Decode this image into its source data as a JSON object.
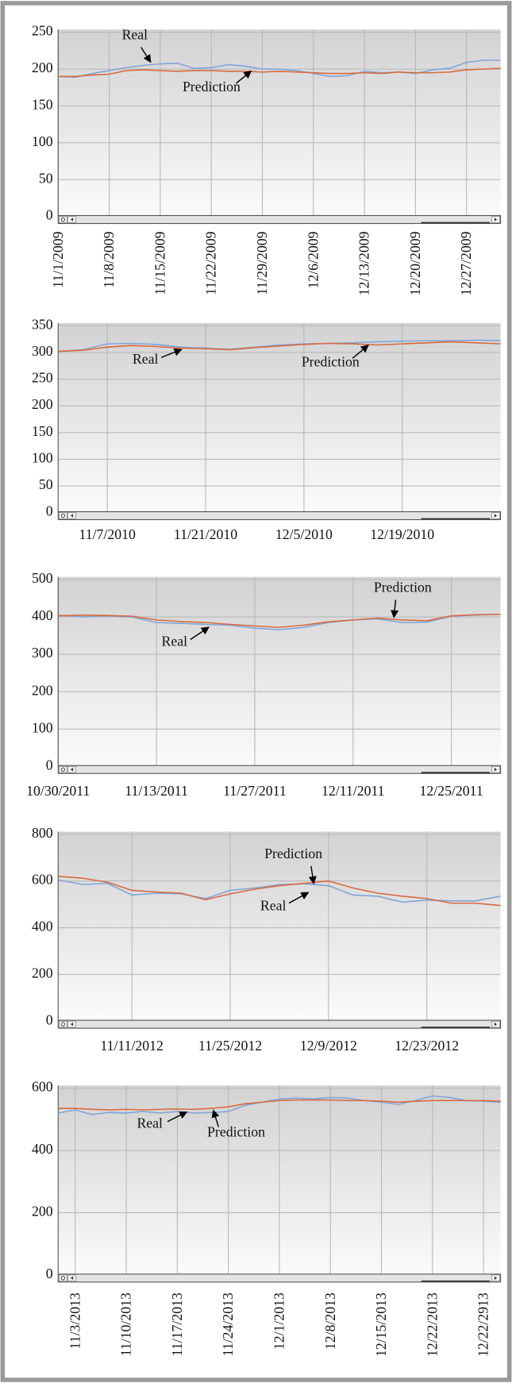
{
  "chart_data": [
    {
      "type": "line",
      "categories": [
        "11/1/2009",
        null,
        null,
        "11/8/2009",
        null,
        null,
        "11/15/2009",
        null,
        null,
        "11/22/2009",
        null,
        null,
        "11/29/2009",
        null,
        null,
        "12/6/2009",
        null,
        null,
        "12/13/2009",
        null,
        null,
        "12/20/2009",
        null,
        null,
        "12/27/2009",
        null,
        null
      ],
      "series": [
        {
          "name": "Real",
          "color": "#7ea6d9",
          "values": [
            190,
            189,
            194,
            198,
            202,
            205,
            207,
            208,
            201,
            202,
            206,
            204,
            200,
            200,
            198,
            194,
            190,
            191,
            197,
            195,
            196,
            194,
            199,
            201,
            209,
            212,
            212
          ]
        },
        {
          "name": "Prediction",
          "color": "#d8693b",
          "values": [
            190,
            190,
            192,
            193,
            198,
            199,
            198,
            197,
            198,
            198,
            197,
            197,
            196,
            197,
            196,
            195,
            194,
            194,
            195,
            194,
            196,
            195,
            195,
            196,
            199,
            200,
            201
          ]
        }
      ],
      "ylim": [
        0,
        250
      ],
      "yticks": [
        0,
        50,
        100,
        150,
        200,
        250
      ],
      "grid": true
    },
    {
      "type": "line",
      "categories": [
        null,
        null,
        "11/7/2010",
        null,
        null,
        null,
        "11/21/2010",
        null,
        null,
        null,
        "12/5/2010",
        null,
        null,
        null,
        "12/19/2010",
        null,
        null,
        null,
        null
      ],
      "series": [
        {
          "name": "Real",
          "color": "#7ea6d9",
          "values": [
            302,
            305,
            316,
            317,
            315,
            310,
            308,
            306,
            310,
            314,
            316,
            317,
            318,
            320,
            321,
            322,
            322,
            323,
            322
          ]
        },
        {
          "name": "Prediction",
          "color": "#d8693b",
          "values": [
            302,
            304,
            310,
            313,
            311,
            308,
            307,
            305,
            309,
            312,
            315,
            317,
            316,
            314,
            316,
            318,
            320,
            318,
            316
          ]
        }
      ],
      "ylim": [
        0,
        350
      ],
      "yticks": [
        0,
        50,
        100,
        150,
        200,
        250,
        300,
        350
      ],
      "grid": true
    },
    {
      "type": "line",
      "categories": [
        "10/30/2011",
        null,
        null,
        null,
        "11/13/2011",
        null,
        null,
        null,
        "11/27/2011",
        null,
        null,
        null,
        "12/11/2011",
        null,
        null,
        null,
        "12/25/2011",
        null,
        null
      ],
      "series": [
        {
          "name": "Real",
          "color": "#7ea6d9",
          "values": [
            405,
            400,
            403,
            400,
            385,
            383,
            380,
            378,
            370,
            366,
            372,
            385,
            392,
            395,
            385,
            386,
            402,
            405,
            407
          ]
        },
        {
          "name": "Prediction",
          "color": "#d8693b",
          "values": [
            403,
            405,
            404,
            402,
            392,
            388,
            385,
            380,
            376,
            372,
            378,
            387,
            392,
            397,
            392,
            390,
            403,
            406,
            407
          ]
        }
      ],
      "ylim": [
        0,
        500
      ],
      "yticks": [
        0,
        100,
        200,
        300,
        400,
        500
      ],
      "grid": true
    },
    {
      "type": "line",
      "categories": [
        null,
        null,
        null,
        "11/11/2012",
        null,
        null,
        null,
        "11/25/2012",
        null,
        null,
        null,
        "12/9/2012",
        null,
        null,
        null,
        "12/23/2012",
        null,
        null,
        null
      ],
      "series": [
        {
          "name": "Real",
          "color": "#7ea6d9",
          "values": [
            605,
            585,
            590,
            540,
            548,
            545,
            525,
            560,
            570,
            585,
            588,
            580,
            540,
            535,
            510,
            518,
            515,
            515,
            535
          ]
        },
        {
          "name": "Prediction",
          "color": "#d8693b",
          "values": [
            620,
            612,
            595,
            560,
            553,
            548,
            520,
            545,
            565,
            580,
            590,
            600,
            570,
            548,
            535,
            525,
            505,
            505,
            495
          ]
        }
      ],
      "ylim": [
        0,
        800
      ],
      "yticks": [
        0,
        200,
        400,
        600,
        800
      ],
      "grid": true
    },
    {
      "type": "line",
      "categories": [
        null,
        "11/3/2013",
        null,
        null,
        "11/10/2013",
        null,
        null,
        "11/17/2013",
        null,
        null,
        "11/24/2013",
        null,
        null,
        "12/1/2013",
        null,
        null,
        "12/8/2013",
        null,
        null,
        "12/15/2013",
        null,
        null,
        "12/22/2013",
        null,
        null,
        "12/22/2913",
        null
      ],
      "series": [
        {
          "name": "Real",
          "color": "#7ea6d9",
          "values": [
            520,
            530,
            515,
            522,
            520,
            525,
            520,
            525,
            520,
            522,
            525,
            545,
            555,
            565,
            568,
            565,
            570,
            568,
            560,
            555,
            548,
            560,
            575,
            570,
            560,
            558,
            555
          ]
        },
        {
          "name": "Prediction",
          "color": "#d8693b",
          "values": [
            535,
            535,
            532,
            530,
            532,
            530,
            532,
            533,
            532,
            535,
            540,
            550,
            555,
            560,
            562,
            562,
            562,
            560,
            560,
            558,
            555,
            558,
            560,
            560,
            560,
            560,
            558
          ]
        }
      ],
      "ylim": [
        0,
        600
      ],
      "yticks": [
        0,
        200,
        400,
        600
      ],
      "grid": true
    }
  ]
}
